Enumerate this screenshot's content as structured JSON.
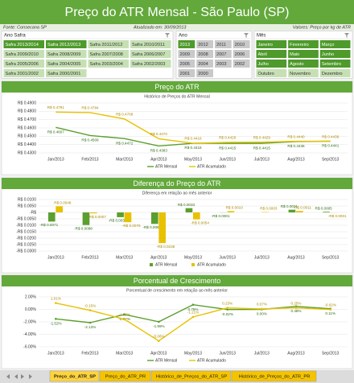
{
  "header": {
    "title": "Preço do ATR Mensal - São Paulo (SP)"
  },
  "info": {
    "source": "Fonte: Consecana SP",
    "updated": "Atualizado em: 30/09/2013",
    "units": "Valores: Preço por kg de ATR"
  },
  "slicers": [
    {
      "title": "Ano Safra",
      "items": [
        {
          "label": "Safra 2013/2014",
          "state": "selected"
        },
        {
          "label": "Safra 2012/2013",
          "state": "selected"
        },
        {
          "label": "Safra 2011/2012",
          "state": "available"
        },
        {
          "label": "Safra 2010/2011",
          "state": "available"
        },
        {
          "label": "Safra 2009/2010",
          "state": "available"
        },
        {
          "label": "Safra 2008/2009",
          "state": "available"
        },
        {
          "label": "Safra 2007/2008",
          "state": "available"
        },
        {
          "label": "Safra 2006/2007",
          "state": "available"
        },
        {
          "label": "Safra 2005/2006",
          "state": "available"
        },
        {
          "label": "Safra 2004/2005",
          "state": "available"
        },
        {
          "label": "Safra 2003/2004",
          "state": "available"
        },
        {
          "label": "Safra 2002/2003",
          "state": "available"
        },
        {
          "label": "Safra 2001/2002",
          "state": "available"
        },
        {
          "label": "Safra 2000/2001",
          "state": "available"
        }
      ]
    },
    {
      "title": "Ano",
      "items": [
        {
          "label": "2013",
          "state": "selected"
        },
        {
          "label": "2012",
          "state": "unavailable"
        },
        {
          "label": "2011",
          "state": "unavailable"
        },
        {
          "label": "2010",
          "state": "unavailable"
        },
        {
          "label": "2009",
          "state": "unavailable"
        },
        {
          "label": "2008",
          "state": "unavailable"
        },
        {
          "label": "2007",
          "state": "unavailable"
        },
        {
          "label": "2006",
          "state": "unavailable"
        },
        {
          "label": "2005",
          "state": "unavailable"
        },
        {
          "label": "2004",
          "state": "unavailable"
        },
        {
          "label": "2003",
          "state": "unavailable"
        },
        {
          "label": "2002",
          "state": "unavailable"
        },
        {
          "label": "2001",
          "state": "unavailable"
        },
        {
          "label": "2000",
          "state": "unavailable"
        }
      ]
    },
    {
      "title": "Mês",
      "items": [
        {
          "label": "Janeiro",
          "state": "selected"
        },
        {
          "label": "Fevereiro",
          "state": "selected"
        },
        {
          "label": "Março",
          "state": "selected"
        },
        {
          "label": "Abril",
          "state": "selected"
        },
        {
          "label": "Maio",
          "state": "selected"
        },
        {
          "label": "Junho",
          "state": "selected"
        },
        {
          "label": "Julho",
          "state": "selected"
        },
        {
          "label": "Agosto",
          "state": "selected"
        },
        {
          "label": "Setembro",
          "state": "selected"
        },
        {
          "label": "Outubro",
          "state": "available"
        },
        {
          "label": "Novembro",
          "state": "available"
        },
        {
          "label": "Dezembro",
          "state": "available"
        }
      ]
    }
  ],
  "chart_data": [
    {
      "type": "line",
      "title": "Preço do ATR",
      "subtitle": "Histórico de Preços do ATR Mensal",
      "categories": [
        "Jan/2013",
        "Feb/2013",
        "Mar/2013",
        "Apr/2013",
        "May/2013",
        "Jun/2013",
        "Jul/2013",
        "Aug/2013",
        "Sep/2013"
      ],
      "ylim": [
        0.43,
        0.49
      ],
      "yticks": [
        {
          "value": 0.43,
          "label": "R$ 0.4300"
        },
        {
          "value": 0.44,
          "label": "R$ 0.4400"
        },
        {
          "value": 0.45,
          "label": "R$ 0.4500"
        },
        {
          "value": 0.46,
          "label": "R$ 0.4600"
        },
        {
          "value": 0.47,
          "label": "R$ 0.4700"
        },
        {
          "value": 0.48,
          "label": "R$ 0.4800"
        },
        {
          "value": 0.49,
          "label": "R$ 0.4900"
        }
      ],
      "grid": true,
      "series": [
        {
          "name": "ATR Mensal",
          "color": "#5b9f2f",
          "values": [
            0.4607,
            0.4509,
            0.4472,
            0.4383,
            0.4416,
            0.4415,
            0.4415,
            0.4436,
            0.4441
          ],
          "value_labels": [
            "R$ 0.4607",
            "R$ 0.4509",
            "R$ 0.4472",
            "R$ 0.4383",
            "R$ 0.4416",
            "R$ 0.4415",
            "R$ 0.4415",
            "R$ 0.4436",
            "R$ 0.4441"
          ]
        },
        {
          "name": "ATR Acumulado",
          "color": "#e8c100",
          "values": [
            0.4791,
            0.4784,
            0.4708,
            0.447,
            0.4416,
            0.4426,
            0.4429,
            0.444,
            0.4439
          ],
          "value_labels": [
            "R$ 0.4791",
            "R$ 0.4784",
            "R$ 0.4708",
            "R$ 0.4470",
            "R$ 0.4416",
            "R$ 0.4426",
            "R$ 0.4429",
            "R$ 0.4440",
            "R$ 0.4439"
          ]
        }
      ]
    },
    {
      "type": "bar",
      "title": "Diferença do Preço do ATR",
      "subtitle": "Diferença em relação ao mês anterior",
      "categories": [
        "Jan/2013",
        "Feb/2013",
        "Mar/2013",
        "Apr/2013",
        "May/2013",
        "Jun/2013",
        "Jul/2013",
        "Aug/2013",
        "Sep/2013"
      ],
      "ylim": [
        -0.03,
        0.01
      ],
      "yticks": [
        {
          "value": -0.03,
          "label": "-R$ 0.0300"
        },
        {
          "value": -0.025,
          "label": "-R$ 0.0250"
        },
        {
          "value": -0.02,
          "label": "-R$ 0.0200"
        },
        {
          "value": -0.015,
          "label": "-R$ 0.0150"
        },
        {
          "value": -0.01,
          "label": "-R$ 0.0100"
        },
        {
          "value": -0.005,
          "label": "-R$ 0.0050"
        },
        {
          "value": 0,
          "label": "-R$"
        },
        {
          "value": 0.005,
          "label": "R$ 0.0050"
        },
        {
          "value": 0.01,
          "label": "R$ 0.0100"
        }
      ],
      "grid": true,
      "series": [
        {
          "name": "ATR Mensal",
          "color": "#5b9f2f",
          "values": [
            -0.0071,
            -0.0098,
            -0.0037,
            -0.0089,
            0.0033,
            -0.0001,
            0,
            0.0021,
            0.0005
          ],
          "value_labels": [
            "-R$ 0.0071",
            "-R$ 0.0098",
            "-R$ 0.0037",
            "-R$ 0.0089",
            "R$ 0.0033",
            "-R$ 0.0001",
            null,
            "R$ 0.0021",
            "R$ 0.0005"
          ]
        },
        {
          "name": "ATR Acumulado",
          "color": "#e8c100",
          "values": [
            0.0048,
            -0.0007,
            -0.0076,
            -0.0238,
            -0.0054,
            0.001,
            0.0003,
            0.0011,
            -0.0001
          ],
          "value_labels": [
            "R$ 0.0048",
            "-R$ 0.0007",
            "-R$ 0.0076",
            "-R$ 0.0238",
            "-R$ 0.0054",
            "R$ 0.0010",
            "R$ 0.0003",
            "R$ 0.0011",
            "-R$ 0.0001"
          ]
        }
      ]
    },
    {
      "type": "line",
      "title": "Porcentual de Crescimento",
      "subtitle": "Porcentual de crescimento em relação ao mês anterior",
      "categories": [
        "Jan/2013",
        "Feb/2013",
        "Mar/2013",
        "Apr/2013",
        "May/2013",
        "Jun/2013",
        "Jul/2013",
        "Aug/2013",
        "Sep/2013"
      ],
      "ylim": [
        -6,
        2
      ],
      "yticks": [
        {
          "value": -6,
          "label": "-6.00%"
        },
        {
          "value": -4,
          "label": "-4.00%"
        },
        {
          "value": -2,
          "label": "-2.00%"
        },
        {
          "value": 0,
          "label": "0.00%"
        },
        {
          "value": 2,
          "label": "2.00%"
        }
      ],
      "grid": true,
      "markers": true,
      "series": [
        {
          "name": "ATR Mensal",
          "color": "#5b9f2f",
          "values": [
            -1.52,
            -2.13,
            -0.82,
            -1.99,
            0.75,
            -0.02,
            0,
            0.48,
            0.11
          ],
          "value_labels": [
            "-1.52%",
            "-2.13%",
            "-0.82%",
            "-1.99%",
            "0.75%",
            "-0.02%",
            "0.00%",
            "0.48%",
            "0.11%"
          ]
        },
        {
          "name": "ATR Acumulado",
          "color": "#e8c100",
          "values": [
            1.01,
            -0.15,
            -1.59,
            -5.06,
            -1.21,
            0.23,
            0.07,
            0.25,
            -0.02
          ],
          "value_labels": [
            "1.01%",
            "-0.15%",
            "-1.59%",
            "-5.06%",
            "-1.21%",
            "0.23%",
            "0.07%",
            "0.25%",
            "-0.02%"
          ]
        }
      ]
    }
  ],
  "tabs": [
    {
      "label": "Preço_do_ATR_SP",
      "active": true
    },
    {
      "label": "Preço_do_ATR_PR",
      "active": false
    },
    {
      "label": "Histórico_de_Preços_do_ATR_SP",
      "active": false
    },
    {
      "label": "Histórico_de_Preços_do_ATR_PR",
      "active": false
    }
  ]
}
